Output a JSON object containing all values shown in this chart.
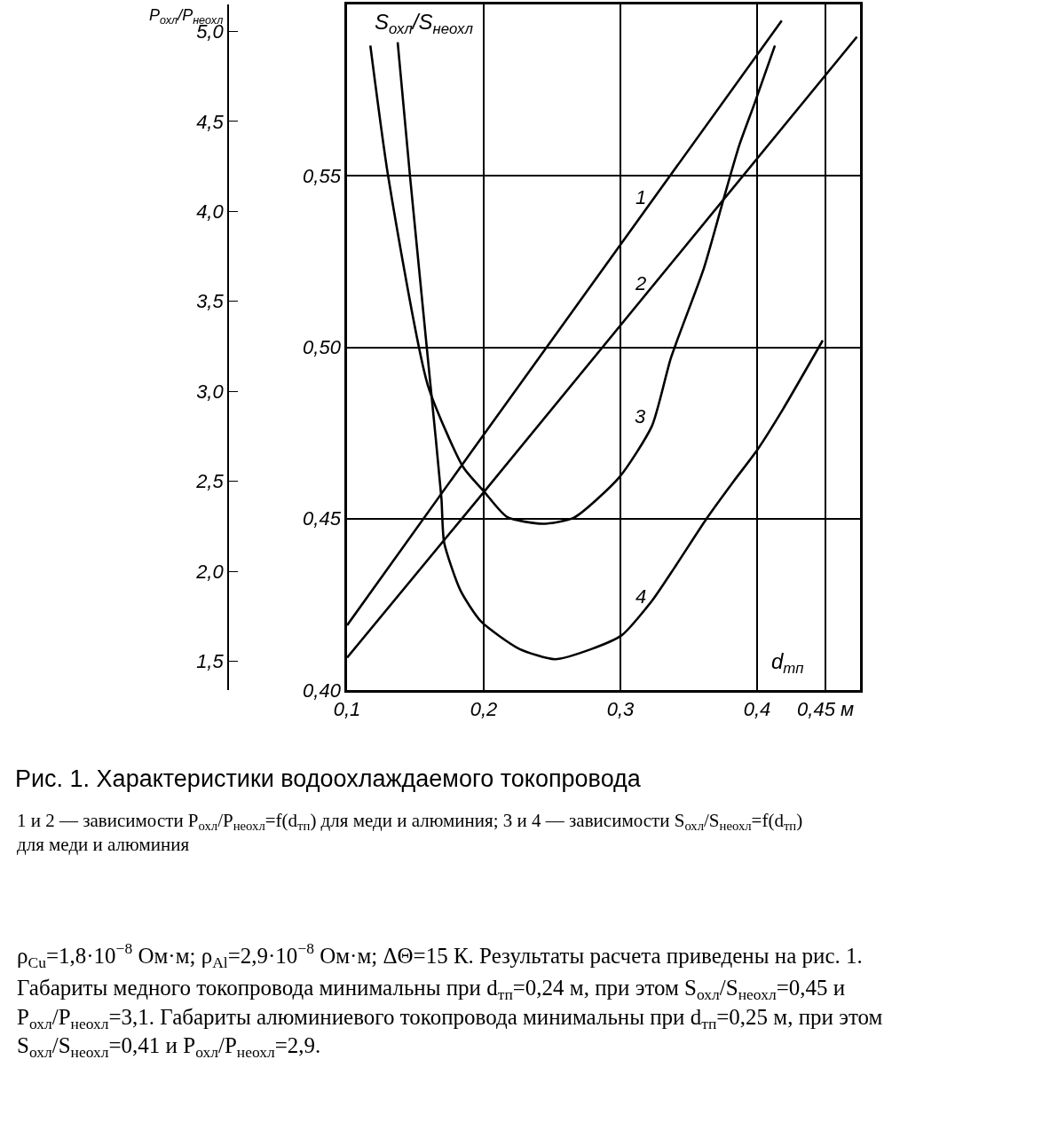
{
  "chart_data": {
    "type": "line",
    "title": "Рис. 1. Характеристики водоохлаждаемого токопровода",
    "subtitle": "1 и 2 — зависимости P$_{охл}$/P$_{неохл}$=f(d$_{тп}$) для меди и алюминия; 3 и 4 — зависимости S$_{охл}$/S$_{неохл}$=f(d$_{тп}$) для меди и алюминия",
    "xlabel": "d$_{тп}$",
    "ylabel": "P$_{охл}$/P$_{неохл}$",
    "y2label": "S$_{охл}$/S$_{неохл}$",
    "xlim": [
      0.1,
      0.475
    ],
    "xticks": [
      {
        "value": 0.1,
        "label": "0,1"
      },
      {
        "value": 0.2,
        "label": "0,2"
      },
      {
        "value": 0.3,
        "label": "0,3"
      },
      {
        "value": 0.4,
        "label": "0,4"
      },
      {
        "value": 0.45,
        "label": "0,45 м"
      }
    ],
    "y2lim": [
      0.4,
      0.6
    ],
    "y2ticks": [
      {
        "value": 0.4,
        "label": "0,40"
      },
      {
        "value": 0.45,
        "label": "0,45"
      },
      {
        "value": 0.5,
        "label": "0,50"
      },
      {
        "value": 0.55,
        "label": "0,55"
      }
    ],
    "ylim": [
      1.34,
      5.15
    ],
    "yticks": [
      {
        "value": 1.5,
        "label": "1,5"
      },
      {
        "value": 2.0,
        "label": "2,0"
      },
      {
        "value": 2.5,
        "label": "2,5"
      },
      {
        "value": 3.0,
        "label": "3,0"
      },
      {
        "value": 3.5,
        "label": "3,5"
      },
      {
        "value": 4.0,
        "label": "4,0"
      },
      {
        "value": 4.5,
        "label": "4,5"
      },
      {
        "value": 5.0,
        "label": "5,0"
      }
    ],
    "grid": true,
    "legend": false,
    "marker": "none",
    "line_style": "solid",
    "series": [
      {
        "name": "1",
        "color": "#000000",
        "x": [
          0.1,
          0.2,
          0.418
        ],
        "values": [
          1.7,
          2.76,
          5.06
        ]
      },
      {
        "name": "2",
        "color": "#000000",
        "x": [
          0.1,
          0.2,
          0.473
        ],
        "values": [
          1.52,
          2.44,
          4.97
        ]
      },
      {
        "name": "3",
        "color": "#000000",
        "axis": "y2",
        "x": [
          0.117,
          0.13,
          0.159,
          0.185,
          0.2,
          0.217,
          0.243,
          0.266,
          0.299,
          0.323,
          0.337,
          0.361,
          0.376,
          0.387,
          0.398,
          0.413
        ],
        "values": [
          0.588,
          0.55,
          0.489,
          0.465,
          0.458,
          0.4505,
          0.4485,
          0.4503,
          0.462,
          0.477,
          0.497,
          0.523,
          0.544,
          0.559,
          0.571,
          0.588
        ]
      },
      {
        "name": "4",
        "color": "#000000",
        "axis": "y2",
        "x": [
          0.137,
          0.146,
          0.161,
          0.169,
          0.171,
          0.183,
          0.198,
          0.226,
          0.252,
          0.279,
          0.301,
          0.323,
          0.34,
          0.363,
          0.383,
          0.4,
          0.419,
          0.448
        ],
        "values": [
          0.589,
          0.55,
          0.489,
          0.456,
          0.443,
          0.429,
          0.42,
          0.412,
          0.409,
          0.412,
          0.416,
          0.426,
          0.436,
          0.45,
          0.461,
          0.47,
          0.482,
          0.502
        ]
      }
    ],
    "annotations": [
      "ρ$_{Cu}$=1,8·10$^{−8}$ Ом·м; ρ$_{Al}$=2,9·10$^{−8}$ Ом·м; ΔΘ=15 К. Результаты расчета приведены на рис. 1.",
      "Габариты медного токопровода минимальны при d$_{тп}$=0,24 м, при этом S$_{охл}$/S$_{неохл}$=0,45 и P$_{охл}$/P$_{неохл}$=3,1. Габариты алюминиевого токопровода минимальны при d$_{тп}$=0,25 м, при этом S$_{охл}$/S$_{неохл}$=0,41 и P$_{охл}$/P$_{неохл}$=2,9."
    ]
  }
}
